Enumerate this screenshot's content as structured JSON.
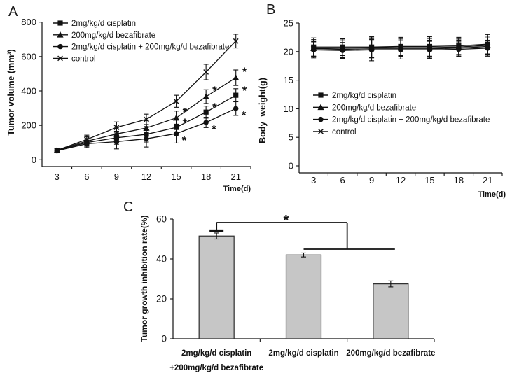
{
  "figure": {
    "background": "#ffffff",
    "ink_color": "#111111"
  },
  "chart_data": [
    {
      "panel": "A",
      "type": "line",
      "xlabel": "Time(d)",
      "ylabel": "Tumor volume (mm³)",
      "x": [
        3,
        6,
        9,
        12,
        15,
        18,
        21
      ],
      "ylim": [
        0,
        800
      ],
      "yticks": [
        0,
        200,
        400,
        600,
        800
      ],
      "grid": false,
      "legend_position": "upper-left-inside",
      "sig_symbol": "*",
      "series": [
        {
          "name": "2mg/kg/d cisplatin",
          "marker": "square",
          "values": [
            55,
            100,
            128,
            148,
            188,
            277,
            375
          ],
          "err": [
            12,
            22,
            38,
            45,
            48,
            35,
            38
          ],
          "sig_days": [
            15,
            18,
            21
          ]
        },
        {
          "name": "200mg/kg/d bezafibrate",
          "marker": "triangle",
          "values": [
            55,
            108,
            150,
            185,
            243,
            367,
            477
          ],
          "err": [
            12,
            25,
            35,
            42,
            40,
            40,
            45
          ],
          "sig_days": [
            15,
            18,
            21
          ]
        },
        {
          "name": "2mg/kg/d cisplatin + 200mg/kg/d bezafibrate",
          "marker": "circle",
          "values": [
            52,
            93,
            105,
            122,
            152,
            217,
            298
          ],
          "err": [
            12,
            22,
            42,
            48,
            55,
            30,
            40
          ],
          "sig_days": [
            15,
            18,
            21
          ]
        },
        {
          "name": "control",
          "marker": "x",
          "values": [
            55,
            118,
            188,
            235,
            340,
            510,
            690
          ],
          "err": [
            12,
            25,
            32,
            30,
            35,
            45,
            40
          ],
          "sig_days": []
        }
      ]
    },
    {
      "panel": "B",
      "type": "line",
      "xlabel": "Time(d)",
      "ylabel": "Body  weight(g)",
      "x": [
        3,
        6,
        9,
        12,
        15,
        18,
        21
      ],
      "ylim": [
        0,
        25
      ],
      "yticks": [
        0,
        5,
        10,
        15,
        20,
        25
      ],
      "grid": false,
      "legend_position": "middle-left-inside",
      "sig_symbol": "*",
      "series": [
        {
          "name": "2mg/kg/d cisplatin",
          "marker": "square",
          "values": [
            20.8,
            20.8,
            20.8,
            20.9,
            20.9,
            21.0,
            21.3
          ],
          "err": [
            1.6,
            1.5,
            1.8,
            1.6,
            1.7,
            1.5,
            1.7
          ],
          "sig_days": []
        },
        {
          "name": "200mg/kg/d bezafibrate",
          "marker": "triangle",
          "values": [
            20.6,
            20.6,
            20.7,
            20.7,
            20.7,
            20.8,
            21.1
          ],
          "err": [
            1.5,
            1.6,
            1.7,
            1.5,
            1.6,
            1.4,
            1.6
          ],
          "sig_days": []
        },
        {
          "name": "2mg/kg/d cisplatin + 200mg/kg/d bezafibrate",
          "marker": "circle",
          "values": [
            20.3,
            20.2,
            20.3,
            20.3,
            20.3,
            20.4,
            20.6
          ],
          "err": [
            1.4,
            1.4,
            1.9,
            1.6,
            1.5,
            1.3,
            1.4
          ],
          "sig_days": []
        },
        {
          "name": "control",
          "marker": "x",
          "values": [
            20.5,
            20.4,
            20.5,
            20.5,
            20.5,
            20.6,
            20.9
          ],
          "err": [
            1.3,
            1.5,
            1.6,
            1.4,
            1.5,
            1.4,
            1.5
          ],
          "sig_days": []
        }
      ]
    },
    {
      "panel": "C",
      "type": "bar",
      "ylabel": "Tumor growth inhibition rate(%)",
      "ylim": [
        0,
        60
      ],
      "yticks": [
        0,
        20,
        40,
        60
      ],
      "grid": false,
      "bar_fill": "#c6c6c6",
      "categories": [
        [
          "2mg/kg/d cisplatin",
          "+200mg/kg/d bezafibrate"
        ],
        [
          "2mg/kg/d cisplatin"
        ],
        [
          "200mg/kg/d bezafibrate"
        ]
      ],
      "values": [
        51.5,
        42,
        27.5
      ],
      "errors": [
        1.5,
        1.0,
        1.5
      ],
      "significance": {
        "symbol": "*",
        "compares": "combination vs 2mg/kg/d cisplatin and 200mg/kg/d bezafibrate"
      }
    }
  ]
}
